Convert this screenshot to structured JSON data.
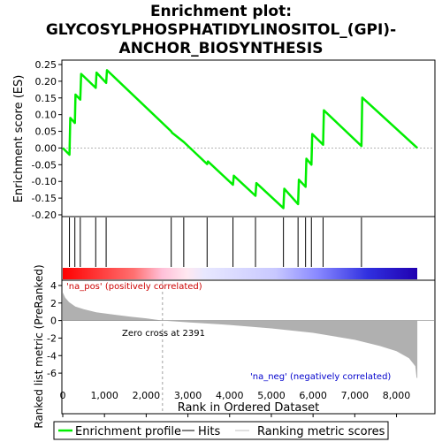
{
  "title_lines": [
    "Enrichment plot:",
    "GLYCOSYLPHOSPHATIDYLINOSITOL_(GPI)-",
    "ANCHOR_BIOSYNTHESIS"
  ],
  "colors": {
    "es_line": "#00ee00",
    "hit": "#000000",
    "metric_fill": "#b0b0b0",
    "pos_label": "#cc0000",
    "neg_label": "#0000cc",
    "zero_cross": "#a0a0a0"
  },
  "chart_data": [
    {
      "type": "line",
      "name": "enrichment-profile",
      "ylabel": "Enrichment score (ES)",
      "ylim": [
        -0.2,
        0.25
      ],
      "yticks": [
        0.25,
        0.2,
        0.15,
        0.1,
        0.05,
        0.0,
        -0.05,
        -0.1,
        -0.15,
        -0.2
      ],
      "ytick_labels": [
        "0.25",
        "0.20",
        "0.15",
        "0.10",
        "0.05",
        "0.00",
        "-0.05",
        "-0.10",
        "-0.15",
        "-0.20"
      ],
      "xlim": [
        0,
        8900
      ],
      "grid": false,
      "points": [
        [
          0,
          0.0
        ],
        [
          160,
          -0.02
        ],
        [
          180,
          0.09
        ],
        [
          290,
          0.075
        ],
        [
          305,
          0.16
        ],
        [
          420,
          0.145
        ],
        [
          440,
          0.222
        ],
        [
          790,
          0.18
        ],
        [
          810,
          0.226
        ],
        [
          1040,
          0.195
        ],
        [
          1060,
          0.233
        ],
        [
          2600,
          0.05
        ],
        [
          2620,
          0.046
        ],
        [
          2900,
          0.018
        ],
        [
          3460,
          -0.048
        ],
        [
          3480,
          -0.04
        ],
        [
          4080,
          -0.11
        ],
        [
          4100,
          -0.083
        ],
        [
          4620,
          -0.143
        ],
        [
          4640,
          -0.105
        ],
        [
          5290,
          -0.18
        ],
        [
          5310,
          -0.122
        ],
        [
          5640,
          -0.168
        ],
        [
          5660,
          -0.095
        ],
        [
          5820,
          -0.116
        ],
        [
          5840,
          -0.032
        ],
        [
          5960,
          -0.05
        ],
        [
          5980,
          0.042
        ],
        [
          6240,
          0.01
        ],
        [
          6260,
          0.113
        ],
        [
          7160,
          0.006
        ],
        [
          7180,
          0.151
        ],
        [
          8500,
          0.0
        ]
      ]
    },
    {
      "type": "scatter",
      "name": "hits",
      "xlim": [
        0,
        8900
      ],
      "x": [
        160,
        290,
        420,
        790,
        1040,
        2600,
        2900,
        3460,
        4080,
        4620,
        5290,
        5640,
        5820,
        5960,
        6240,
        7160
      ]
    },
    {
      "type": "area",
      "name": "ranked-list-metric",
      "xlabel": "Rank in Ordered Dataset",
      "ylabel": "Ranked list metric (PreRanked)",
      "xlim": [
        0,
        8900
      ],
      "ylim": [
        -7,
        4.5
      ],
      "xticks": [
        0,
        1000,
        2000,
        3000,
        4000,
        5000,
        6000,
        7000,
        8000
      ],
      "xtick_labels": [
        "0",
        "1,000",
        "2,000",
        "3,000",
        "4,000",
        "5,000",
        "6,000",
        "7,000",
        "8,000"
      ],
      "yticks": [
        4,
        2,
        0,
        -2,
        -4,
        -6
      ],
      "ytick_labels": [
        "4",
        "2",
        "0",
        "-2",
        "-4",
        "-6"
      ],
      "points": [
        [
          0,
          3.2
        ],
        [
          60,
          2.6
        ],
        [
          150,
          2.1
        ],
        [
          300,
          1.6
        ],
        [
          500,
          1.3
        ],
        [
          800,
          0.95
        ],
        [
          1200,
          0.7
        ],
        [
          1600,
          0.45
        ],
        [
          2000,
          0.25
        ],
        [
          2391,
          0.0
        ],
        [
          3000,
          -0.2
        ],
        [
          4000,
          -0.5
        ],
        [
          5000,
          -0.9
        ],
        [
          6000,
          -1.4
        ],
        [
          7000,
          -2.2
        ],
        [
          7600,
          -2.9
        ],
        [
          8000,
          -3.5
        ],
        [
          8300,
          -4.3
        ],
        [
          8450,
          -5.2
        ],
        [
          8480,
          -6.5
        ],
        [
          8500,
          -6.6
        ]
      ],
      "zero_cross_x": 2391,
      "zero_cross_label": "Zero cross at 2391",
      "pos_label": "'na_pos' (positively correlated)",
      "neg_label": "'na_neg' (negatively correlated)"
    }
  ],
  "legend": {
    "items": [
      "Enrichment profile",
      "Hits",
      "Ranking metric scores"
    ]
  }
}
